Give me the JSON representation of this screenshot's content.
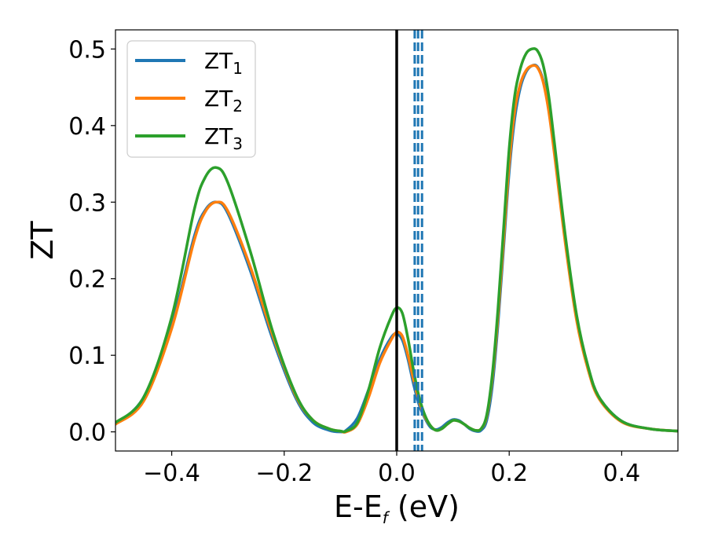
{
  "chart_data": {
    "type": "line",
    "title": "",
    "xlabel": {
      "main": "E-E",
      "sub": "f",
      "unit": " (eV)"
    },
    "ylabel": "ZT",
    "xlim": [
      -0.5,
      0.5
    ],
    "ylim": [
      -0.025,
      0.525
    ],
    "xticks": [
      -0.4,
      -0.2,
      0.0,
      0.2,
      0.4
    ],
    "xtick_labels": [
      "−0.4",
      "−0.2",
      "0.0",
      "0.2",
      "0.4"
    ],
    "yticks": [
      0.0,
      0.1,
      0.2,
      0.3,
      0.4,
      0.5
    ],
    "ytick_labels": [
      "0.0",
      "0.1",
      "0.2",
      "0.3",
      "0.4",
      "0.5"
    ],
    "grid": false,
    "legend_position": "top-left",
    "vertical_lines": [
      {
        "x": 0.0,
        "color": "#000000",
        "style": "solid"
      },
      {
        "x": 0.032,
        "color": "#1f77b4",
        "style": "dashed"
      },
      {
        "x": 0.038,
        "color": "#1f77b4",
        "style": "dashed"
      },
      {
        "x": 0.045,
        "color": "#1f77b4",
        "style": "dashed"
      }
    ],
    "series": [
      {
        "name": "ZT",
        "sub": "1",
        "color": "#1f77b4",
        "x": [
          -0.5,
          -0.45,
          -0.4,
          -0.36,
          -0.34,
          -0.32,
          -0.3,
          -0.26,
          -0.22,
          -0.18,
          -0.15,
          -0.12,
          -0.1,
          -0.09,
          -0.07,
          -0.05,
          -0.03,
          -0.01,
          0.0,
          0.01,
          0.02,
          0.03,
          0.04,
          0.05,
          0.06,
          0.07,
          0.08,
          0.09,
          0.1,
          0.11,
          0.12,
          0.13,
          0.14,
          0.15,
          0.16,
          0.17,
          0.18,
          0.19,
          0.2,
          0.21,
          0.22,
          0.23,
          0.24,
          0.25,
          0.26,
          0.27,
          0.28,
          0.3,
          0.32,
          0.34,
          0.36,
          0.4,
          0.45,
          0.5
        ],
        "values": [
          0.01,
          0.045,
          0.14,
          0.255,
          0.29,
          0.3,
          0.285,
          0.21,
          0.12,
          0.045,
          0.013,
          0.002,
          0.0,
          0.002,
          0.018,
          0.055,
          0.095,
          0.123,
          0.128,
          0.12,
          0.095,
          0.062,
          0.035,
          0.018,
          0.006,
          0.003,
          0.006,
          0.012,
          0.016,
          0.015,
          0.01,
          0.004,
          0.001,
          0.002,
          0.015,
          0.06,
          0.14,
          0.24,
          0.34,
          0.41,
          0.45,
          0.47,
          0.478,
          0.477,
          0.46,
          0.425,
          0.37,
          0.25,
          0.15,
          0.085,
          0.045,
          0.014,
          0.004,
          0.001
        ]
      },
      {
        "name": "ZT",
        "sub": "2",
        "color": "#ff7f0e",
        "x": [
          -0.5,
          -0.45,
          -0.4,
          -0.36,
          -0.34,
          -0.32,
          -0.3,
          -0.26,
          -0.22,
          -0.18,
          -0.15,
          -0.12,
          -0.1,
          -0.09,
          -0.07,
          -0.05,
          -0.03,
          -0.01,
          0.0,
          0.01,
          0.02,
          0.03,
          0.04,
          0.05,
          0.06,
          0.07,
          0.08,
          0.09,
          0.1,
          0.11,
          0.12,
          0.13,
          0.14,
          0.15,
          0.16,
          0.17,
          0.18,
          0.19,
          0.2,
          0.21,
          0.22,
          0.23,
          0.24,
          0.25,
          0.26,
          0.27,
          0.28,
          0.3,
          0.32,
          0.34,
          0.36,
          0.4,
          0.45,
          0.5
        ],
        "values": [
          0.01,
          0.04,
          0.135,
          0.25,
          0.288,
          0.3,
          0.288,
          0.215,
          0.125,
          0.048,
          0.016,
          0.004,
          0.001,
          0.0,
          0.01,
          0.045,
          0.09,
          0.12,
          0.13,
          0.125,
          0.1,
          0.068,
          0.04,
          0.02,
          0.008,
          0.002,
          0.004,
          0.01,
          0.015,
          0.014,
          0.01,
          0.005,
          0.002,
          0.004,
          0.02,
          0.07,
          0.15,
          0.25,
          0.35,
          0.42,
          0.455,
          0.472,
          0.478,
          0.476,
          0.458,
          0.42,
          0.365,
          0.245,
          0.145,
          0.082,
          0.043,
          0.013,
          0.004,
          0.001
        ]
      },
      {
        "name": "ZT",
        "sub": "3",
        "color": "#2ca02c",
        "x": [
          -0.5,
          -0.45,
          -0.4,
          -0.36,
          -0.34,
          -0.32,
          -0.3,
          -0.26,
          -0.22,
          -0.18,
          -0.15,
          -0.12,
          -0.1,
          -0.09,
          -0.07,
          -0.05,
          -0.03,
          -0.01,
          0.0,
          0.01,
          0.02,
          0.03,
          0.04,
          0.05,
          0.06,
          0.07,
          0.08,
          0.09,
          0.1,
          0.11,
          0.12,
          0.13,
          0.14,
          0.15,
          0.16,
          0.17,
          0.18,
          0.19,
          0.2,
          0.21,
          0.22,
          0.23,
          0.24,
          0.25,
          0.26,
          0.27,
          0.28,
          0.3,
          0.32,
          0.34,
          0.36,
          0.4,
          0.45,
          0.5
        ],
        "values": [
          0.012,
          0.045,
          0.15,
          0.29,
          0.333,
          0.345,
          0.325,
          0.235,
          0.13,
          0.05,
          0.016,
          0.004,
          0.001,
          0.001,
          0.012,
          0.055,
          0.11,
          0.15,
          0.162,
          0.155,
          0.122,
          0.08,
          0.045,
          0.022,
          0.008,
          0.002,
          0.004,
          0.01,
          0.015,
          0.014,
          0.01,
          0.005,
          0.002,
          0.004,
          0.022,
          0.075,
          0.16,
          0.265,
          0.37,
          0.44,
          0.475,
          0.494,
          0.5,
          0.498,
          0.48,
          0.44,
          0.38,
          0.255,
          0.152,
          0.086,
          0.045,
          0.014,
          0.004,
          0.001
        ]
      }
    ]
  }
}
